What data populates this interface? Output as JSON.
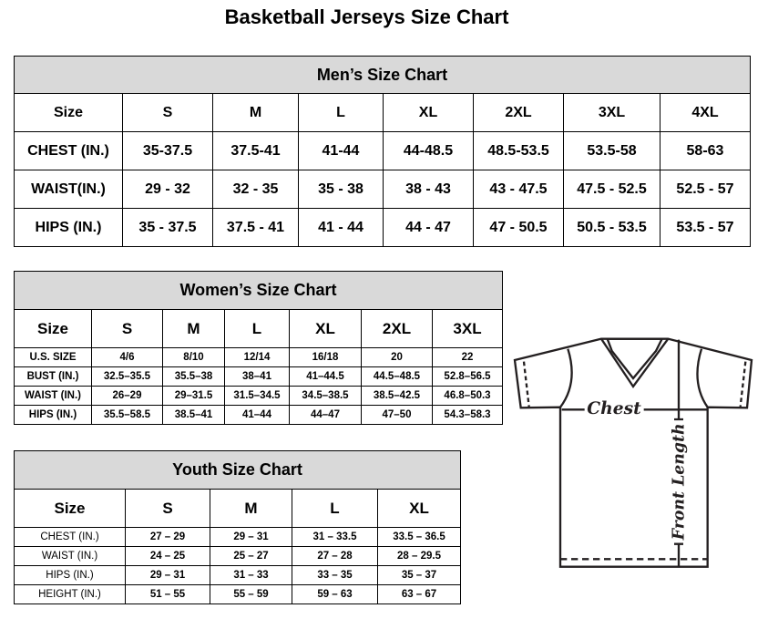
{
  "title": "Basketball Jerseys Size Chart",
  "men": {
    "heading": "Men’s Size Chart",
    "header": [
      "Size",
      "S",
      "M",
      "L",
      "XL",
      "2XL",
      "3XL",
      "4XL"
    ],
    "rows": [
      [
        "CHEST (IN.)",
        "35-37.5",
        "37.5-41",
        "41-44",
        "44-48.5",
        "48.5-53.5",
        "53.5-58",
        "58-63"
      ],
      [
        "WAIST(IN.)",
        "29 - 32",
        "32 - 35",
        "35 - 38",
        "38 - 43",
        "43 - 47.5",
        "47.5 - 52.5",
        "52.5 - 57"
      ],
      [
        "HIPS (IN.)",
        "35 - 37.5",
        "37.5 - 41",
        "41 - 44",
        "44 - 47",
        "47 - 50.5",
        "50.5 - 53.5",
        "53.5 - 57"
      ]
    ]
  },
  "women": {
    "heading": "Women’s Size Chart",
    "header": [
      "Size",
      "S",
      "M",
      "L",
      "XL",
      "2XL",
      "3XL"
    ],
    "rows": [
      [
        "U.S. SIZE",
        "4/6",
        "8/10",
        "12/14",
        "16/18",
        "20",
        "22"
      ],
      [
        "BUST (IN.)",
        "32.5–35.5",
        "35.5–38",
        "38–41",
        "41–44.5",
        "44.5–48.5",
        "52.8–56.5"
      ],
      [
        "WAIST (IN.)",
        "26–29",
        "29–31.5",
        "31.5–34.5",
        "34.5–38.5",
        "38.5–42.5",
        "46.8–50.3"
      ],
      [
        "HIPS (IN.)",
        "35.5–58.5",
        "38.5–41",
        "41–44",
        "44–47",
        "47–50",
        "54.3–58.3"
      ]
    ]
  },
  "youth": {
    "heading": "Youth Size Chart",
    "header": [
      "Size",
      "S",
      "M",
      "L",
      "XL"
    ],
    "rows": [
      [
        "CHEST (IN.)",
        "27 – 29",
        "29 – 31",
        "31 – 33.5",
        "33.5 – 36.5"
      ],
      [
        "WAIST (IN.)",
        "24 – 25",
        "25 – 27",
        "27 – 28",
        "28 – 29.5"
      ],
      [
        "HIPS (IN.)",
        "29 – 31",
        "31 – 33",
        "33 – 35",
        "35 – 37"
      ],
      [
        "HEIGHT (IN.)",
        "51 – 55",
        "55 – 59",
        "59 – 63",
        "63 – 67"
      ]
    ]
  },
  "diagram": {
    "chest_label": "Chest",
    "length_label": "Front Length"
  }
}
